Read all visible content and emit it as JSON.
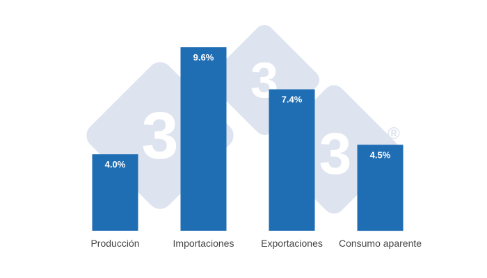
{
  "chart_data": {
    "type": "bar",
    "categories": [
      "Producción",
      "Importaciones",
      "Exportaciones",
      "Consumo aparente"
    ],
    "values": [
      4.0,
      9.6,
      7.4,
      4.5
    ],
    "value_labels": [
      "4.0%",
      "9.6%",
      "7.4%",
      "4.5%"
    ],
    "title": "",
    "xlabel": "",
    "ylabel": "",
    "ylim": [
      0,
      9.6
    ],
    "grid": false,
    "bar_color": "#1f6db3"
  },
  "watermark": {
    "glyph": "3",
    "registered_mark": "®",
    "color": "#dde4ef"
  }
}
